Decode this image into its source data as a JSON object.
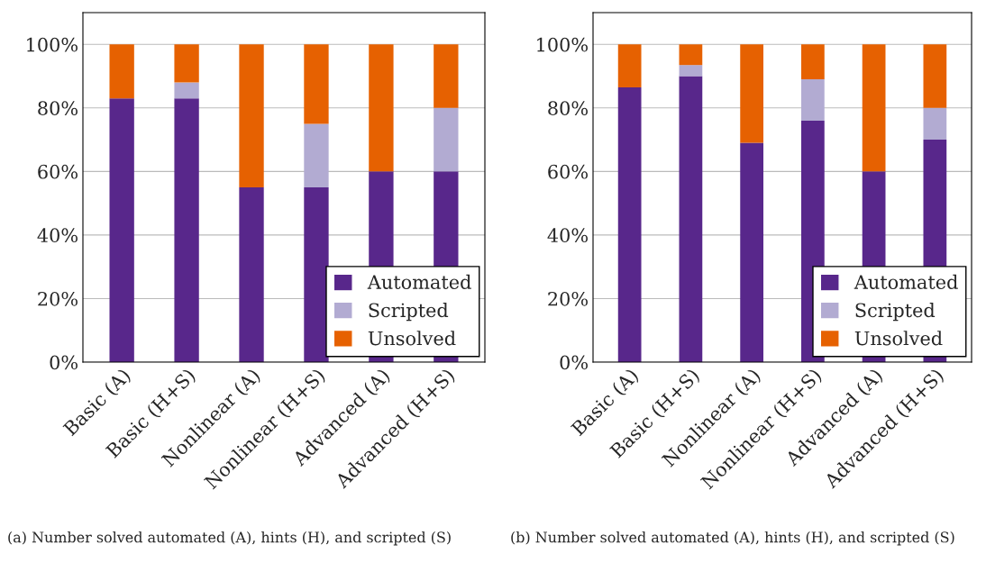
{
  "chart_data": [
    {
      "type": "bar",
      "stacked": true,
      "categories": [
        "Basic (A)",
        "Basic (H+S)",
        "Nonlinear (A)",
        "Nonlinear (H+S)",
        "Advanced (A)",
        "Advanced (H+S)"
      ],
      "series": [
        {
          "name": "Automated",
          "color": "#58278b",
          "values": [
            83,
            83,
            55,
            55,
            60,
            60
          ]
        },
        {
          "name": "Scripted",
          "color": "#b2abd2",
          "values": [
            0,
            5,
            0,
            20,
            0,
            20
          ]
        },
        {
          "name": "Unsolved",
          "color": "#e66101",
          "values": [
            17,
            12,
            45,
            25,
            40,
            20
          ]
        }
      ],
      "ylim": [
        0,
        110
      ],
      "yticks": [
        {
          "value": 0,
          "label": "0%"
        },
        {
          "value": 20,
          "label": "20%"
        },
        {
          "value": 40,
          "label": "40%"
        },
        {
          "value": 60,
          "label": "60%"
        },
        {
          "value": 80,
          "label": "80%"
        },
        {
          "value": 100,
          "label": "100%"
        }
      ],
      "grid": "y",
      "legend": "bottom right",
      "annotations": [
        "(a) Number solved automated (A), hints (H), and scripted (S)"
      ]
    },
    {
      "type": "bar",
      "stacked": true,
      "categories": [
        "Basic (A)",
        "Basic (H+S)",
        "Nonlinear (A)",
        "Nonlinear (H+S)",
        "Advanced (A)",
        "Advanced (H+S)"
      ],
      "series": [
        {
          "name": "Automated",
          "color": "#58278b",
          "values": [
            86.5,
            90,
            69,
            76,
            60,
            70
          ]
        },
        {
          "name": "Scripted",
          "color": "#b2abd2",
          "values": [
            0,
            3.5,
            0,
            13,
            0,
            10
          ]
        },
        {
          "name": "Unsolved",
          "color": "#e66101",
          "values": [
            13.5,
            6.5,
            31,
            11,
            40,
            20
          ]
        }
      ],
      "ylim": [
        0,
        110
      ],
      "yticks": [
        {
          "value": 0,
          "label": "0%"
        },
        {
          "value": 20,
          "label": "20%"
        },
        {
          "value": 40,
          "label": "40%"
        },
        {
          "value": 60,
          "label": "60%"
        },
        {
          "value": 80,
          "label": "80%"
        },
        {
          "value": 100,
          "label": "100%"
        }
      ],
      "grid": "y",
      "legend": "bottom right",
      "annotations": [
        "(b) Number solved automated (A), hints (H), and scripted (S)"
      ]
    }
  ]
}
